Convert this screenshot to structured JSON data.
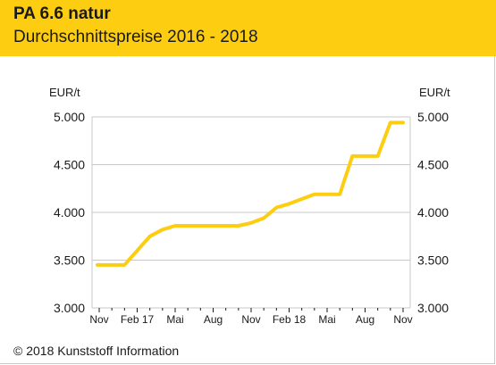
{
  "header": {
    "title": "PA 6.6 natur",
    "subtitle": "Durchschnittspreise 2016 - 2018"
  },
  "footer": {
    "copyright": "© 2018 Kunststoff Information"
  },
  "colors": {
    "header_bg": "#fccd10",
    "line": "#fccd10",
    "grid": "#c8c8c8"
  },
  "chart_data": {
    "type": "line",
    "title": "",
    "ylabel_left": "EUR/t",
    "ylabel_right": "EUR/t",
    "ylim": [
      3000,
      5000
    ],
    "y_ticks": [
      "5.000",
      "4.500",
      "4.000",
      "3.500",
      "3.000"
    ],
    "y_tick_values": [
      5000,
      4500,
      4000,
      3500,
      3000
    ],
    "grid": true,
    "x_ticks": [
      "Nov",
      "Feb 17",
      "Mai",
      "Aug",
      "Nov",
      "Feb 18",
      "Mai",
      "Aug",
      "Nov"
    ],
    "x_range": [
      "2016-11",
      "2018-11"
    ],
    "series": [
      {
        "x": [
          "2016-11",
          "2016-12",
          "2017-01",
          "2017-02",
          "2017-03",
          "2017-04",
          "2017-05",
          "2017-06",
          "2017-07",
          "2017-08",
          "2017-09",
          "2017-10",
          "2017-11",
          "2017-12",
          "2018-01",
          "2018-02",
          "2018-03",
          "2018-04",
          "2018-05",
          "2018-06",
          "2018-07",
          "2018-08",
          "2018-09",
          "2018-10",
          "2018-11"
        ],
        "values": [
          3450,
          3450,
          3450,
          3600,
          3750,
          3820,
          3860,
          3860,
          3860,
          3860,
          3860,
          3860,
          3890,
          3940,
          4050,
          4090,
          4140,
          4190,
          4190,
          4190,
          4590,
          4590,
          4590,
          4940,
          4940
        ]
      }
    ]
  }
}
